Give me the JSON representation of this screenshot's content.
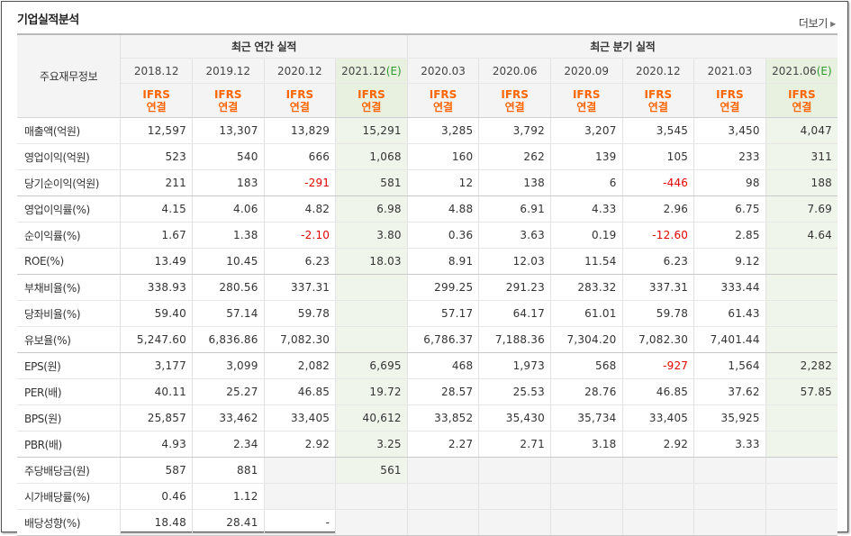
{
  "title": "기업실적분석",
  "more_label": "더보기",
  "corner_label": "주요재무정보",
  "group_annual": "최근 연간 실적",
  "group_quarter": "최근 분기 실적",
  "periods": [
    {
      "label": "2018.12",
      "est": false
    },
    {
      "label": "2019.12",
      "est": false
    },
    {
      "label": "2020.12",
      "est": false
    },
    {
      "label": "2021.12",
      "est": true
    },
    {
      "label": "2020.03",
      "est": false
    },
    {
      "label": "2020.06",
      "est": false
    },
    {
      "label": "2020.09",
      "est": false
    },
    {
      "label": "2020.12",
      "est": false
    },
    {
      "label": "2021.03",
      "est": false
    },
    {
      "label": "2021.06",
      "est": true
    }
  ],
  "est_mark": "(E)",
  "basis_line1": "IFRS",
  "basis_line2": "연결",
  "rows": [
    {
      "label": "매출액(억원)",
      "values": [
        "12,597",
        "13,307",
        "13,829",
        "15,291",
        "3,285",
        "3,792",
        "3,207",
        "3,545",
        "3,450",
        "4,047"
      ],
      "sep": false
    },
    {
      "label": "영업이익(억원)",
      "values": [
        "523",
        "540",
        "666",
        "1,068",
        "160",
        "262",
        "139",
        "105",
        "233",
        "311"
      ],
      "sep": false
    },
    {
      "label": "당기순이익(억원)",
      "values": [
        "211",
        "183",
        "-291",
        "581",
        "12",
        "138",
        "6",
        "-446",
        "98",
        "188"
      ],
      "sep": true
    },
    {
      "label": "영업이익률(%)",
      "values": [
        "4.15",
        "4.06",
        "4.82",
        "6.98",
        "4.88",
        "6.91",
        "4.33",
        "2.96",
        "6.75",
        "7.69"
      ],
      "sep": false
    },
    {
      "label": "순이익률(%)",
      "values": [
        "1.67",
        "1.38",
        "-2.10",
        "3.80",
        "0.36",
        "3.63",
        "0.19",
        "-12.60",
        "2.85",
        "4.64"
      ],
      "sep": false
    },
    {
      "label": "ROE(%)",
      "values": [
        "13.49",
        "10.45",
        "6.23",
        "18.03",
        "8.91",
        "12.03",
        "11.54",
        "6.23",
        "9.12",
        ""
      ],
      "sep": true
    },
    {
      "label": "부채비율(%)",
      "values": [
        "338.93",
        "280.56",
        "337.31",
        "",
        "299.25",
        "291.23",
        "283.32",
        "337.31",
        "333.44",
        ""
      ],
      "sep": false
    },
    {
      "label": "당좌비율(%)",
      "values": [
        "59.40",
        "57.14",
        "59.78",
        "",
        "57.17",
        "64.17",
        "61.01",
        "59.78",
        "61.43",
        ""
      ],
      "sep": false
    },
    {
      "label": "유보율(%)",
      "values": [
        "5,247.60",
        "6,836.86",
        "7,082.30",
        "",
        "6,786.37",
        "7,188.36",
        "7,304.20",
        "7,082.30",
        "7,401.44",
        ""
      ],
      "sep": true
    },
    {
      "label": "EPS(원)",
      "values": [
        "3,177",
        "3,099",
        "2,082",
        "6,695",
        "468",
        "1,973",
        "568",
        "-927",
        "1,564",
        "2,282"
      ],
      "sep": false
    },
    {
      "label": "PER(배)",
      "values": [
        "40.11",
        "25.27",
        "46.85",
        "19.72",
        "28.57",
        "25.53",
        "28.76",
        "46.85",
        "37.62",
        "57.85"
      ],
      "sep": false
    },
    {
      "label": "BPS(원)",
      "values": [
        "25,857",
        "33,462",
        "33,405",
        "40,612",
        "33,852",
        "35,430",
        "35,734",
        "33,405",
        "35,925",
        ""
      ],
      "sep": false
    },
    {
      "label": "PBR(배)",
      "values": [
        "4.93",
        "2.34",
        "2.92",
        "3.25",
        "2.27",
        "2.71",
        "3.18",
        "2.92",
        "3.33",
        ""
      ],
      "sep": true
    },
    {
      "label": "주당배당금(원)",
      "values": [
        "587",
        "881",
        "",
        "561",
        "",
        "",
        "",
        "",
        "",
        ""
      ],
      "gray_from": 2,
      "gray_except": [
        3
      ],
      "sep": false
    },
    {
      "label": "시가배당률(%)",
      "values": [
        "0.46",
        "1.12",
        "",
        "",
        "",
        "",
        "",
        "",
        "",
        ""
      ],
      "gray_from": 2,
      "gray_except": [
        3
      ],
      "sep": false
    },
    {
      "label": "배당성향(%)",
      "values": [
        "18.48",
        "28.41",
        "-",
        "",
        "",
        "",
        "",
        "",
        "",
        ""
      ],
      "gray_from": 3,
      "gray_except": [
        3
      ],
      "sep": false
    }
  ],
  "colors": {
    "negative": "#e30000",
    "ifrs": "#ff6600",
    "estimate_bg": "#f0f5eb",
    "estimate_mark": "#2d9a2d"
  }
}
